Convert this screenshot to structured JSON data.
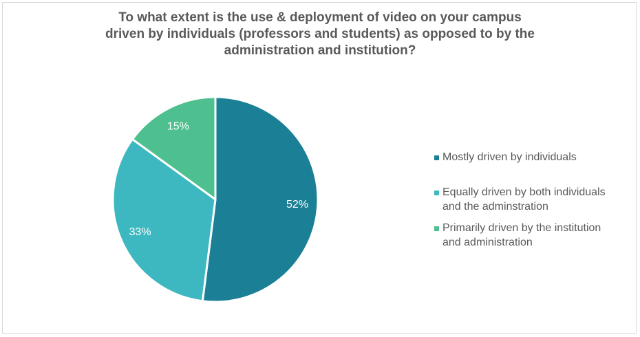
{
  "title_lines": [
    "To what extent is the use & deployment of video on your campus",
    "driven by individuals (professors and students) as opposed to by the",
    "administration and institution?"
  ],
  "chart_data": {
    "type": "pie",
    "title": "To what extent is the use & deployment of video on your campus driven by individuals (professors and students) as opposed to by the administration and institution?",
    "slices": [
      {
        "label": "Mostly driven by individuals",
        "legend_lines": [
          "Mostly driven by individuals"
        ],
        "value": 52,
        "display": "52%",
        "color": "#1b7f96"
      },
      {
        "label": "Equally driven by both individuals and the adminstration",
        "legend_lines": [
          "Equally driven by both individuals",
          "and the adminstration"
        ],
        "value": 33,
        "display": "33%",
        "color": "#3db8c0"
      },
      {
        "label": "Primarily driven by the institution and administration",
        "legend_lines": [
          "Primarily driven by the institution",
          "and administration"
        ],
        "value": 15,
        "display": "15%",
        "color": "#4ec08f"
      }
    ],
    "legend_position": "right"
  }
}
